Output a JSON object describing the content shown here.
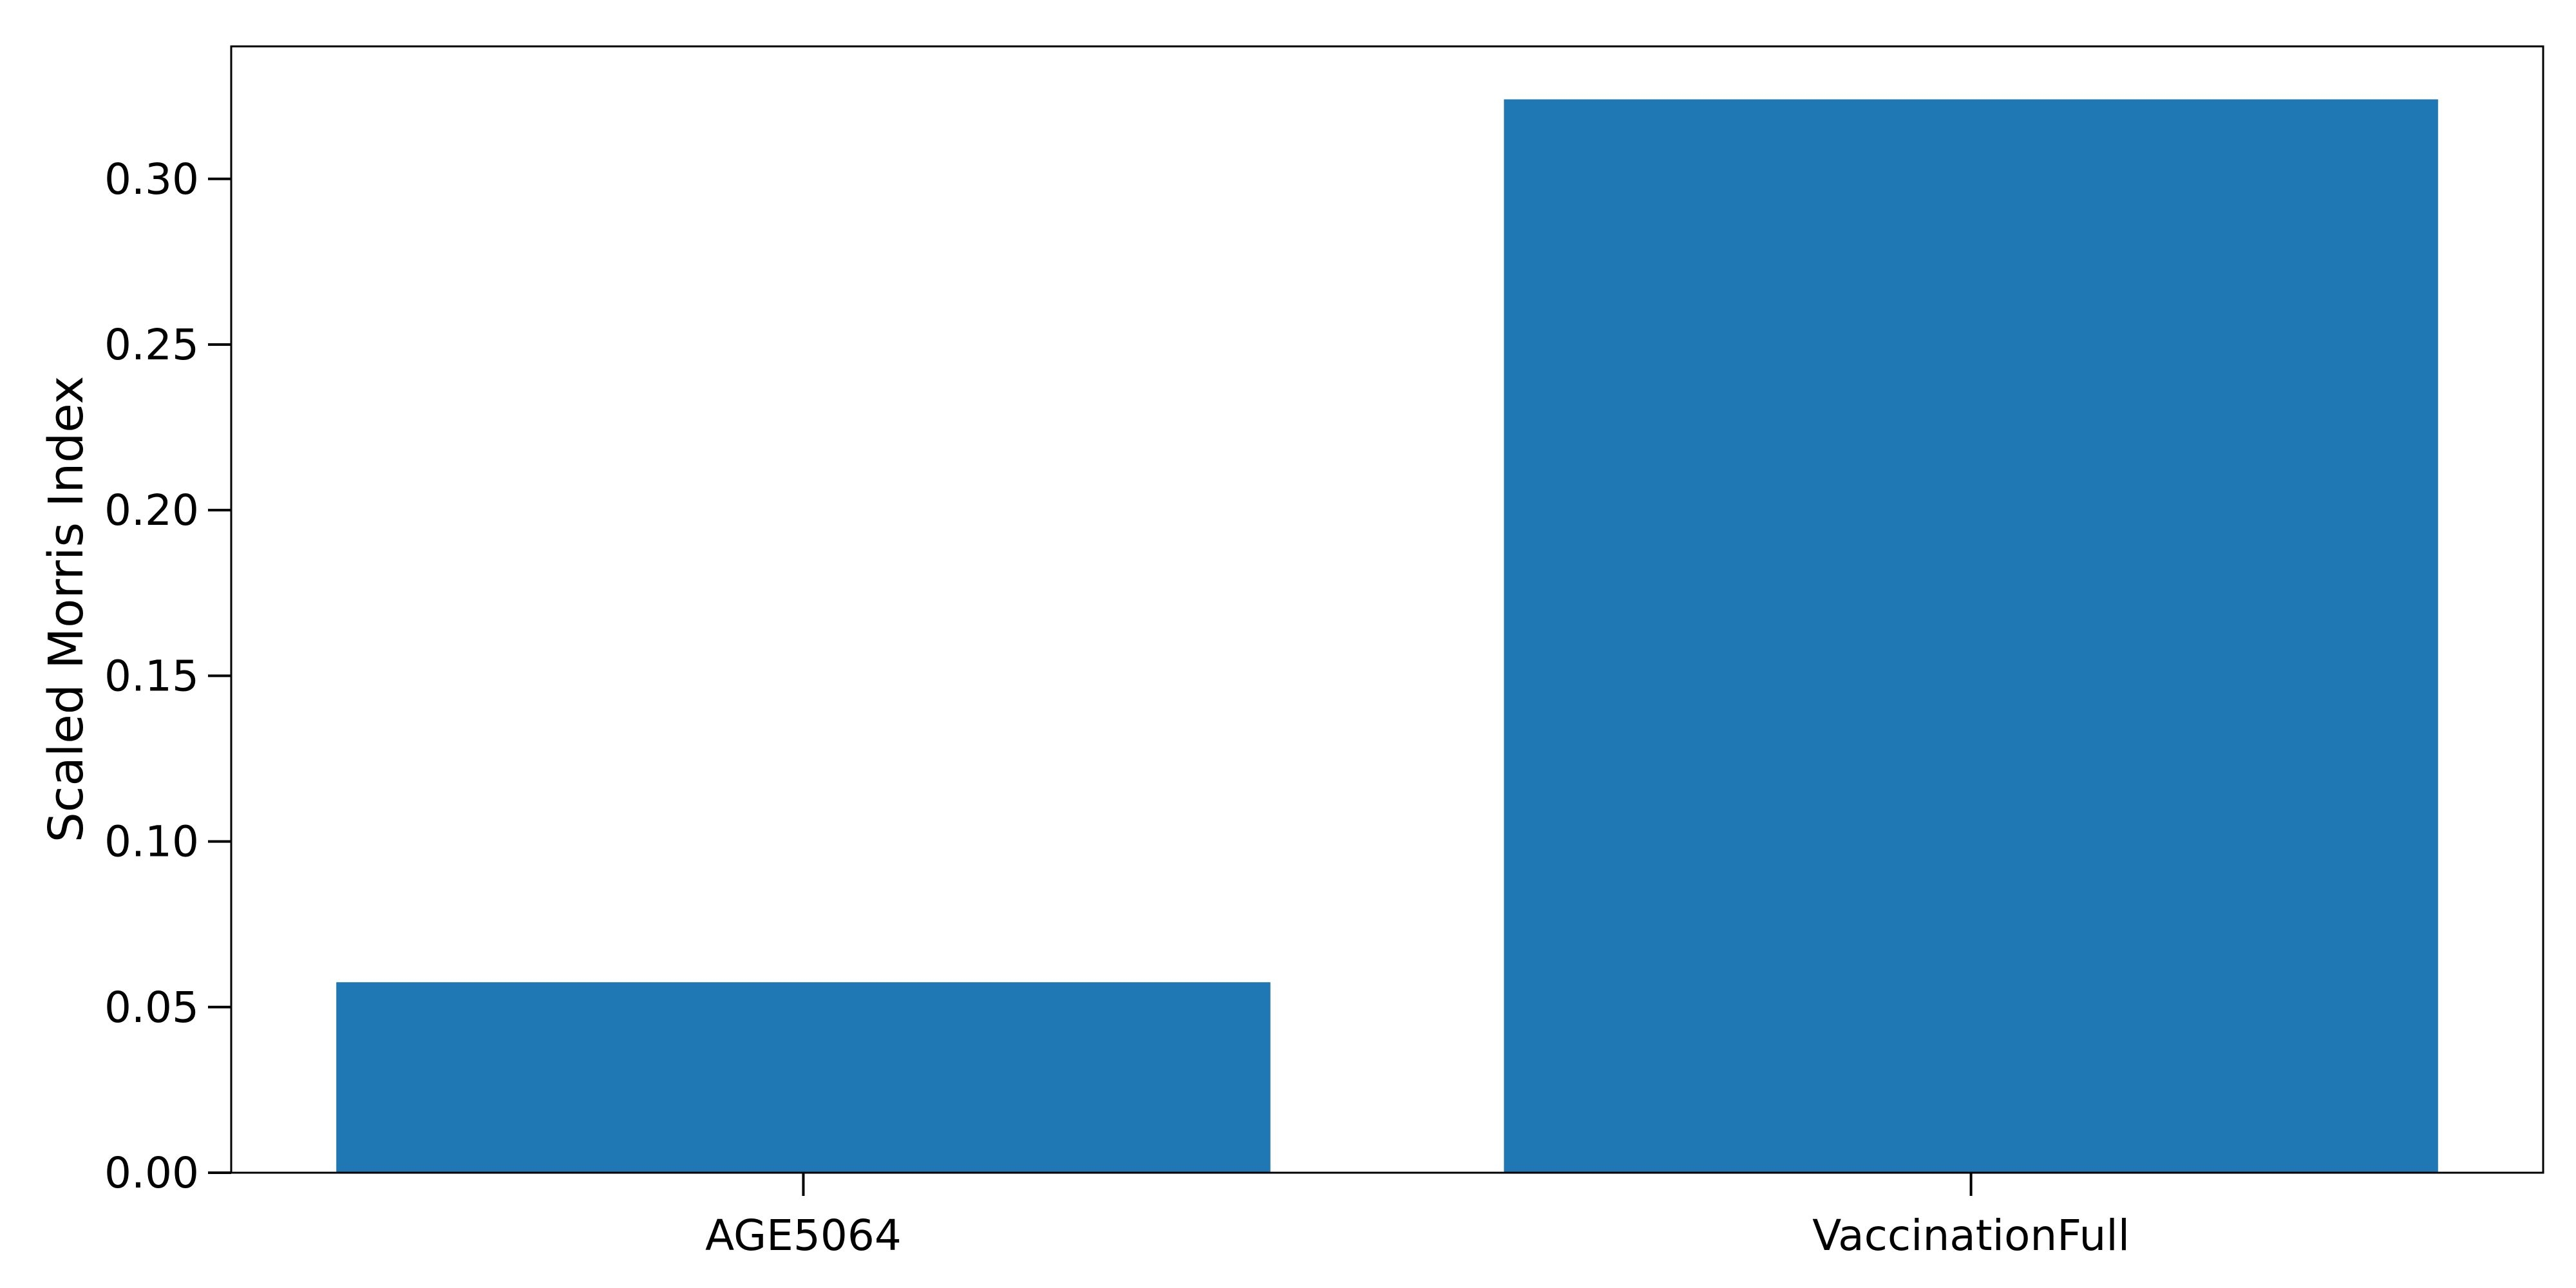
{
  "chart_data": {
    "type": "bar",
    "categories": [
      "AGE5064",
      "VaccinationFull"
    ],
    "values": [
      0.0575,
      0.324
    ],
    "title": "",
    "xlabel": "",
    "ylabel": "Scaled Morris Index",
    "ylim": [
      0,
      0.34
    ],
    "yticks": [
      "0.00",
      "0.05",
      "0.10",
      "0.15",
      "0.20",
      "0.25",
      "0.30"
    ],
    "bar_color": "#1f77b4",
    "grid": false,
    "legend": "none"
  }
}
